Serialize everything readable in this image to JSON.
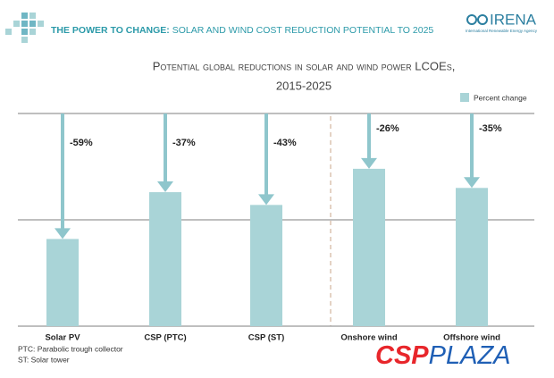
{
  "header": {
    "title_bold": "THE POWER TO CHANGE:",
    "title_rest": "SOLAR AND WIND COST REDUCTION POTENTIAL TO 2025",
    "logo": "IRENA",
    "logo_subtitle": "International Renewable Energy Agency"
  },
  "chart_data": {
    "type": "bar",
    "title": [
      "Potential global reductions in solar and wind power LCOEs,",
      "2015-2025"
    ],
    "categories": [
      "Solar PV",
      "CSP (PTC)",
      "CSP (ST)",
      "Onshore wind",
      "Offshore wind"
    ],
    "series": [
      {
        "name": "Percent change",
        "color": "#a9d4d7",
        "values": [
          -59,
          -37,
          -43,
          -26,
          -35
        ],
        "value_labels": [
          "-59%",
          "-37%",
          "-43%",
          "-26%",
          "-35%"
        ]
      }
    ],
    "ylim": [
      -100,
      0
    ],
    "yticks": [
      -100,
      -50,
      0
    ],
    "grid": true,
    "legend": "top-right"
  },
  "footnotes": [
    "PTC: Parabolic trough collector",
    "ST: Solar tower"
  ],
  "watermark": {
    "bold": "CSP",
    "rest": "PLAZA"
  }
}
